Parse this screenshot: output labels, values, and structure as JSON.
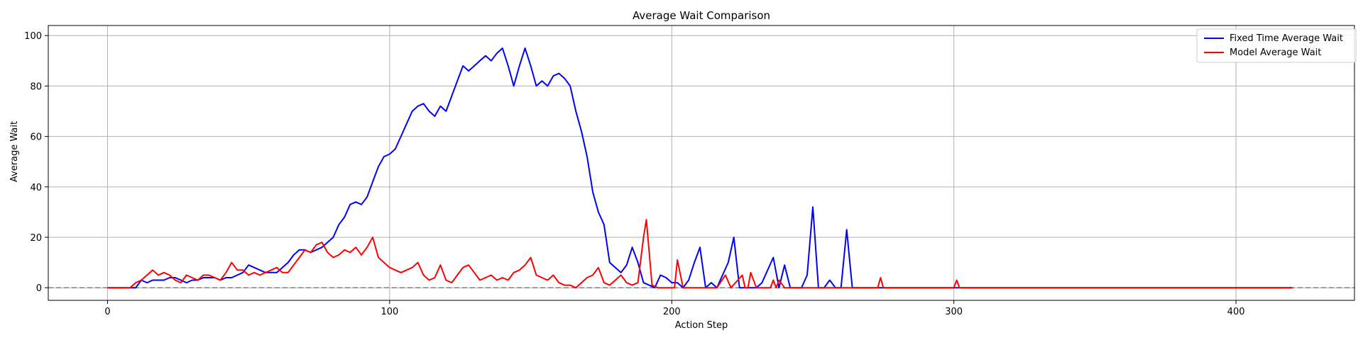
{
  "chart_data": {
    "type": "line",
    "title": "Average Wait Comparison",
    "xlabel": "Action Step",
    "ylabel": "Average Wait",
    "xlim": [
      -21,
      442
    ],
    "ylim": [
      -5,
      104
    ],
    "xticks": [
      0,
      100,
      200,
      300,
      400
    ],
    "yticks": [
      0,
      20,
      40,
      60,
      80,
      100
    ],
    "grid": true,
    "legend_position": "top-right",
    "reference_line": {
      "y": 0,
      "style": "dashed",
      "color": "#808080"
    },
    "series": [
      {
        "name": "Fixed Time Average Wait",
        "color": "#0000ff",
        "x": [
          0,
          10,
          12,
          14,
          16,
          18,
          20,
          22,
          24,
          26,
          28,
          30,
          32,
          34,
          36,
          38,
          40,
          42,
          44,
          46,
          48,
          50,
          52,
          54,
          56,
          58,
          60,
          62,
          64,
          66,
          68,
          70,
          72,
          74,
          76,
          78,
          80,
          82,
          84,
          86,
          88,
          90,
          92,
          94,
          96,
          98,
          100,
          102,
          104,
          106,
          108,
          110,
          112,
          114,
          116,
          118,
          120,
          122,
          124,
          126,
          128,
          130,
          132,
          134,
          136,
          138,
          140,
          142,
          144,
          146,
          148,
          150,
          152,
          154,
          156,
          158,
          160,
          162,
          164,
          166,
          168,
          170,
          172,
          174,
          176,
          178,
          180,
          182,
          184,
          186,
          188,
          190,
          192,
          194,
          196,
          198,
          200,
          202,
          204,
          206,
          208,
          210,
          212,
          214,
          216,
          218,
          220,
          222,
          224,
          226,
          228,
          230,
          232,
          236,
          238,
          240,
          242,
          244,
          246,
          248,
          250,
          252,
          254,
          256,
          258,
          260,
          262,
          264,
          266,
          420
        ],
        "y": [
          0,
          0,
          3,
          2,
          3,
          3,
          3,
          4,
          4,
          3,
          2,
          3,
          3,
          4,
          4,
          4,
          3,
          4,
          4,
          5,
          6,
          9,
          8,
          7,
          6,
          6,
          6,
          8,
          10,
          13,
          15,
          15,
          14,
          15,
          16,
          18,
          20,
          25,
          28,
          33,
          34,
          33,
          36,
          42,
          48,
          52,
          53,
          55,
          60,
          65,
          70,
          72,
          73,
          70,
          68,
          72,
          70,
          76,
          82,
          88,
          86,
          88,
          90,
          92,
          90,
          93,
          95,
          88,
          80,
          88,
          95,
          88,
          80,
          82,
          80,
          84,
          85,
          83,
          80,
          70,
          62,
          52,
          38,
          30,
          25,
          10,
          8,
          6,
          9,
          16,
          10,
          2,
          1,
          0,
          5,
          4,
          2,
          2,
          0,
          3,
          10,
          16,
          0,
          2,
          0,
          5,
          10,
          20,
          0,
          0,
          0,
          0,
          2,
          12,
          0,
          9,
          0,
          0,
          0,
          5,
          32,
          0,
          0,
          3,
          0,
          0,
          23,
          0,
          0,
          0
        ]
      },
      {
        "name": "Model Average Wait",
        "color": "#ff0000",
        "x": [
          0,
          8,
          10,
          12,
          14,
          16,
          18,
          20,
          22,
          24,
          26,
          28,
          30,
          32,
          34,
          36,
          38,
          40,
          42,
          44,
          46,
          48,
          50,
          52,
          54,
          56,
          58,
          60,
          62,
          64,
          66,
          68,
          70,
          72,
          74,
          76,
          78,
          80,
          82,
          84,
          86,
          88,
          90,
          92,
          94,
          96,
          98,
          100,
          102,
          104,
          106,
          108,
          110,
          112,
          114,
          116,
          118,
          120,
          122,
          124,
          126,
          128,
          130,
          132,
          134,
          136,
          138,
          140,
          142,
          144,
          146,
          148,
          150,
          152,
          154,
          156,
          158,
          160,
          162,
          164,
          166,
          168,
          170,
          172,
          174,
          176,
          178,
          180,
          182,
          184,
          186,
          188,
          190,
          191,
          193,
          195,
          197,
          199,
          201,
          202,
          204,
          210,
          216,
          219,
          221,
          225,
          226,
          227,
          228,
          230,
          235,
          236,
          237,
          238,
          240,
          245,
          273,
          274,
          275,
          300,
          301,
          302,
          303,
          420
        ],
        "y": [
          0,
          0,
          2,
          3,
          5,
          7,
          5,
          6,
          5,
          3,
          2,
          5,
          4,
          3,
          5,
          5,
          4,
          3,
          6,
          10,
          7,
          7,
          5,
          6,
          5,
          6,
          7,
          8,
          6,
          6,
          9,
          12,
          15,
          14,
          17,
          18,
          14,
          12,
          13,
          15,
          14,
          16,
          13,
          16,
          20,
          12,
          10,
          8,
          7,
          6,
          7,
          8,
          10,
          5,
          3,
          4,
          9,
          3,
          2,
          5,
          8,
          9,
          6,
          3,
          4,
          5,
          3,
          4,
          3,
          6,
          7,
          9,
          12,
          5,
          4,
          3,
          5,
          2,
          1,
          1,
          0,
          2,
          4,
          5,
          8,
          2,
          1,
          3,
          5,
          2,
          1,
          2,
          20,
          27,
          1,
          0,
          0,
          0,
          0,
          11,
          0,
          0,
          0,
          5,
          0,
          5,
          0,
          0,
          6,
          0,
          0,
          3,
          0,
          3,
          0,
          0,
          0,
          4,
          0,
          0,
          3,
          0,
          0,
          0
        ]
      }
    ]
  }
}
